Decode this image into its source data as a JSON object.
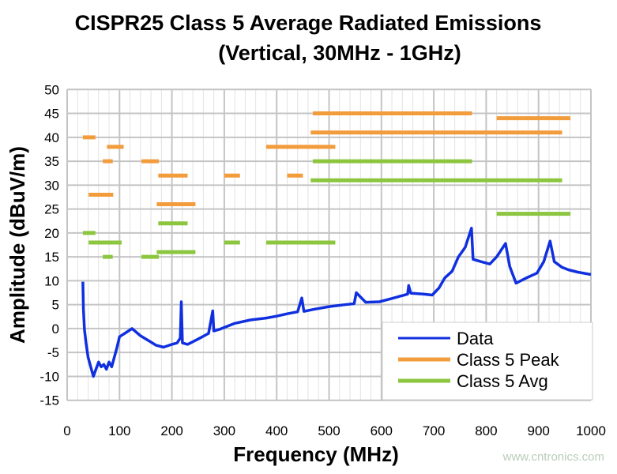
{
  "chart_data": {
    "type": "line",
    "title": "CISPR25 Class 5 Average Radiated Emissions",
    "subtitle": "(Vertical, 30MHz - 1GHz)",
    "xlabel": "Frequency (MHz)",
    "ylabel": "Amplitude (dBuV/m)",
    "xlim": [
      0,
      1000
    ],
    "ylim": [
      -15,
      50
    ],
    "xticks": [
      0,
      100,
      200,
      300,
      400,
      500,
      600,
      700,
      800,
      900,
      1000
    ],
    "yticks": [
      50,
      45,
      40,
      35,
      30,
      25,
      20,
      15,
      10,
      5,
      0,
      -5,
      -10,
      -15
    ],
    "grid": true,
    "legend_position": "bottom-right",
    "series": [
      {
        "name": "Data",
        "color": "#1030e0",
        "x": [
          30,
          31,
          33,
          36,
          40,
          45,
          50,
          55,
          60,
          65,
          70,
          75,
          80,
          85,
          90,
          95,
          100,
          110,
          124,
          140,
          158,
          170,
          184,
          200,
          210,
          216,
          218,
          220,
          230,
          250,
          270,
          278,
          280,
          290,
          320,
          350,
          380,
          400,
          420,
          440,
          448,
          452,
          470,
          500,
          530,
          548,
          552,
          570,
          596,
          620,
          650,
          652,
          656,
          680,
          697,
          710,
          721,
          735,
          747,
          760,
          772,
          775,
          790,
          807,
          820,
          837,
          845,
          857,
          875,
          897,
          910,
          922,
          930,
          945,
          957,
          975,
          1000
        ],
        "y": [
          9.8,
          4,
          -0.2,
          -3,
          -6,
          -8,
          -10,
          -8.5,
          -7,
          -8,
          -7.5,
          -8.5,
          -7,
          -8,
          -6,
          -4,
          -1.7,
          -1,
          0,
          -1.5,
          -2.7,
          -3.5,
          -3.9,
          -3.3,
          -3,
          -2,
          5.6,
          -3,
          -3.3,
          -2.2,
          -1,
          3.7,
          -0.5,
          -0.2,
          1.1,
          1.8,
          2.2,
          2.6,
          3.1,
          3.5,
          6.4,
          3.6,
          4,
          4.6,
          5,
          5.2,
          7.5,
          5.5,
          5.6,
          6.3,
          7.2,
          9,
          7.4,
          7.2,
          7,
          8.5,
          10.6,
          12,
          15,
          17,
          21,
          14.5,
          14,
          13.5,
          15,
          17.8,
          13,
          9.5,
          10.5,
          11.6,
          14,
          18.3,
          14,
          12.8,
          12.3,
          11.8,
          11.3
        ]
      },
      {
        "name": "Class 5 Peak",
        "color": "#f39c3c",
        "segments": [
          {
            "x": [
              30,
              54
            ],
            "y": 40
          },
          {
            "x": [
              76,
              108
            ],
            "y": 38
          },
          {
            "x": [
              68,
              87
            ],
            "y": 35
          },
          {
            "x": [
              142,
              175
            ],
            "y": 35
          },
          {
            "x": [
              174,
              230
            ],
            "y": 32
          },
          {
            "x": [
              300,
              330
            ],
            "y": 32
          },
          {
            "x": [
              420,
              450
            ],
            "y": 32
          },
          {
            "x": [
              41,
              88
            ],
            "y": 28
          },
          {
            "x": [
              171,
              245
            ],
            "y": 26
          },
          {
            "x": [
              380,
              512
            ],
            "y": 38
          },
          {
            "x": [
              465,
              945
            ],
            "y": 41
          },
          {
            "x": [
              469,
              773
            ],
            "y": 45
          },
          {
            "x": [
              820,
              961
            ],
            "y": 44
          }
        ]
      },
      {
        "name": "Class 5 Avg",
        "color": "#8cc63f",
        "segments": [
          {
            "x": [
              30,
              54
            ],
            "y": 20
          },
          {
            "x": [
              41,
              104
            ],
            "y": 18
          },
          {
            "x": [
              68,
              87
            ],
            "y": 15
          },
          {
            "x": [
              142,
              175
            ],
            "y": 15
          },
          {
            "x": [
              174,
              230
            ],
            "y": 22
          },
          {
            "x": [
              171,
              245
            ],
            "y": 16
          },
          {
            "x": [
              300,
              330
            ],
            "y": 18
          },
          {
            "x": [
              380,
              512
            ],
            "y": 18
          },
          {
            "x": [
              469,
              773
            ],
            "y": 35
          },
          {
            "x": [
              465,
              945
            ],
            "y": 31
          },
          {
            "x": [
              820,
              961
            ],
            "y": 24
          }
        ]
      }
    ]
  },
  "watermark": "www.cntronics.com"
}
